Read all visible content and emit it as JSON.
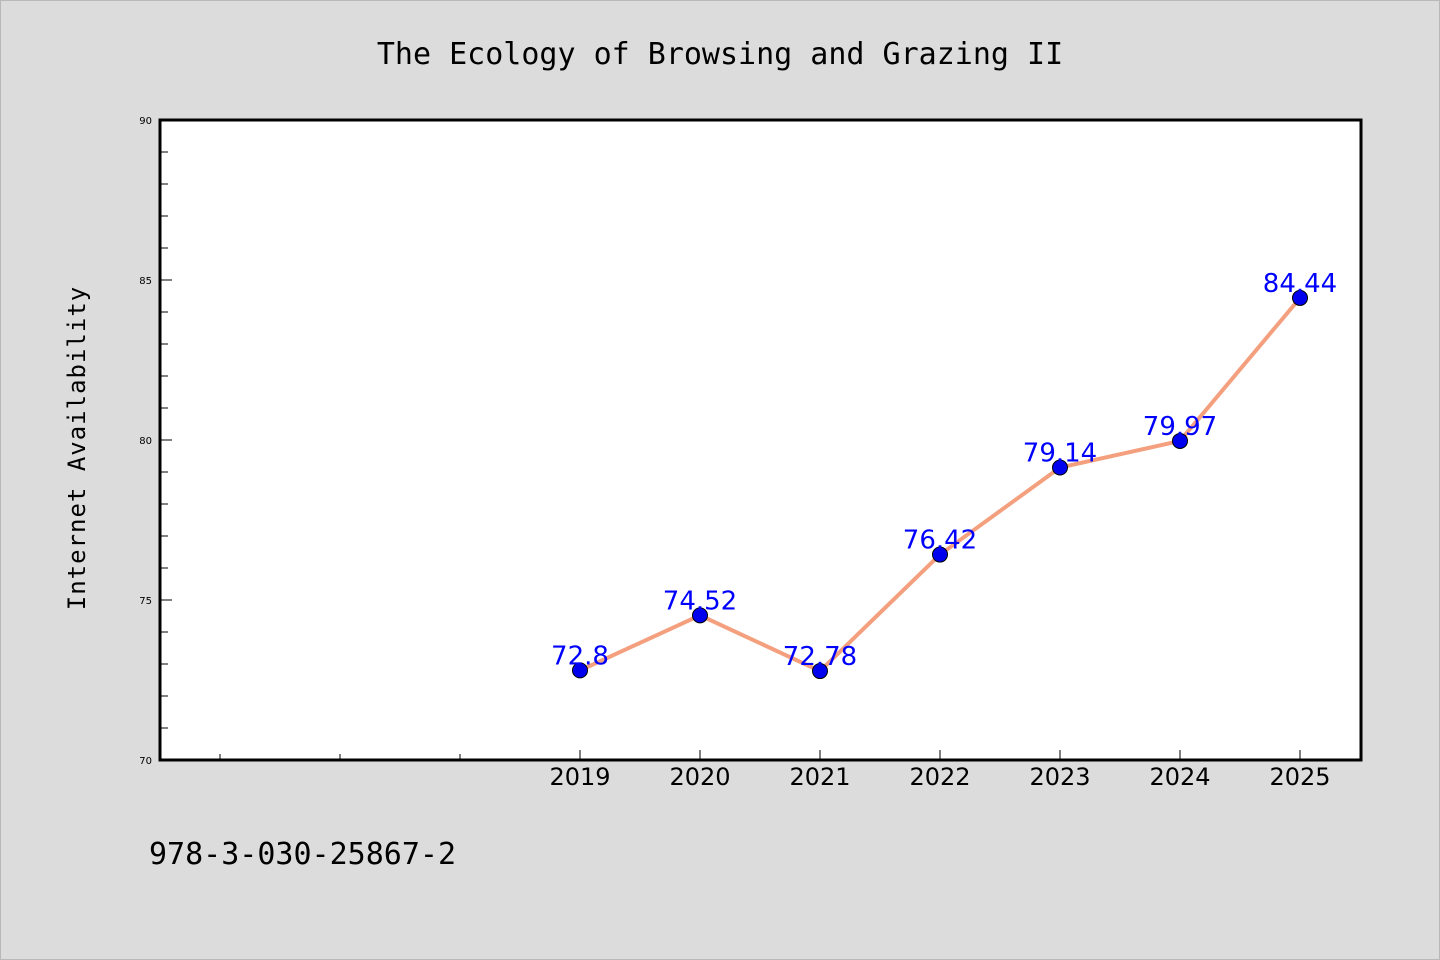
{
  "chart_data": {
    "type": "line",
    "title": "The Ecology of Browsing and Grazing II",
    "xlabel": "",
    "ylabel": "Internet Availability",
    "x": [
      "2019",
      "2020",
      "2021",
      "2022",
      "2023",
      "2024",
      "2025"
    ],
    "series": [
      {
        "values": [
          72.8,
          74.52,
          72.78,
          76.42,
          79.14,
          79.97,
          84.44
        ],
        "data_labels": [
          "72.8",
          "74.52",
          "72.78",
          "76.42",
          "79.14",
          "79.97",
          "84.44"
        ]
      }
    ],
    "ylim": [
      70,
      90
    ],
    "yticks": [
      "70",
      "75",
      "80",
      "85",
      "90"
    ],
    "grid": false,
    "legend": "none"
  },
  "footer_code": "978-3-030-25867-2",
  "colors": {
    "background": "#dcdcdc",
    "plot_background": "#ffffff",
    "line": "#f4a07e",
    "marker": "#0000ee",
    "data_label": "#0000ff"
  }
}
